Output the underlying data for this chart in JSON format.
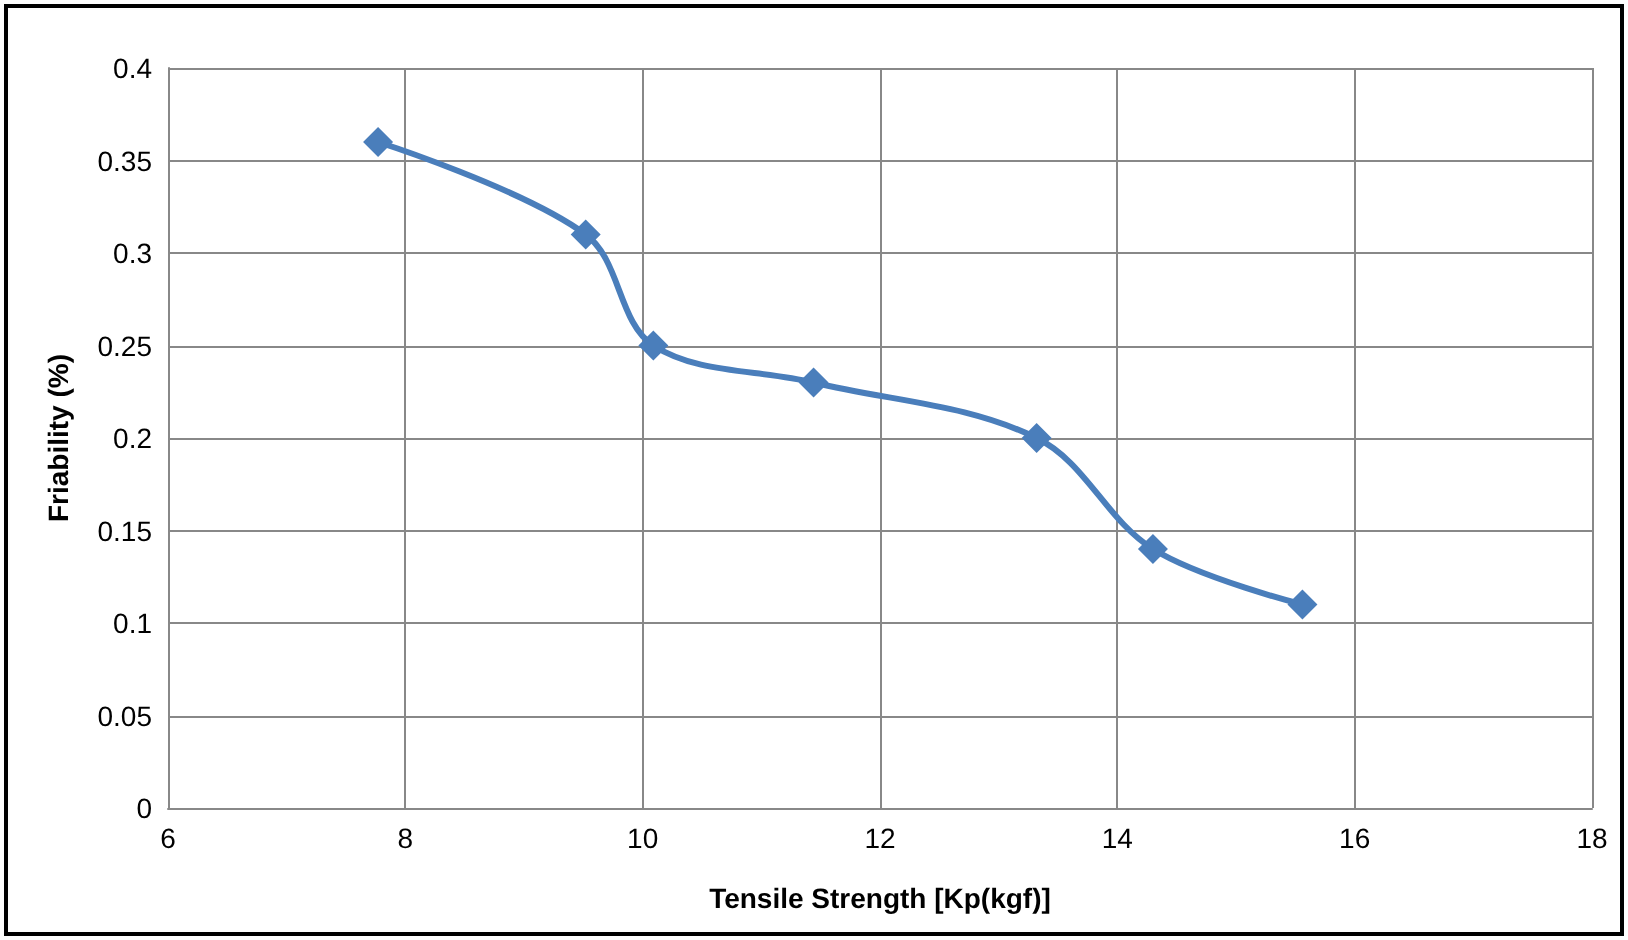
{
  "chart_data": {
    "type": "line",
    "xlabel": "Tensile Strength [Kp(kgf)]",
    "ylabel": "Friability (%)",
    "x": [
      7.77,
      9.52,
      10.09,
      11.44,
      13.32,
      14.3,
      15.56
    ],
    "series": [
      {
        "color": "#4a7ebb",
        "values": [
          0.36,
          0.31,
          0.25,
          0.23,
          0.2,
          0.14,
          0.11
        ]
      }
    ],
    "xlim": [
      6,
      18
    ],
    "xticks": [
      6,
      8,
      10,
      12,
      14,
      16,
      18
    ],
    "ylim": [
      0,
      0.4
    ],
    "yticks": [
      0,
      0.05,
      0.1,
      0.15,
      0.2,
      0.25,
      0.3,
      0.35,
      0.4
    ],
    "grid": true,
    "marker": "diamond",
    "line_style": "solid"
  }
}
